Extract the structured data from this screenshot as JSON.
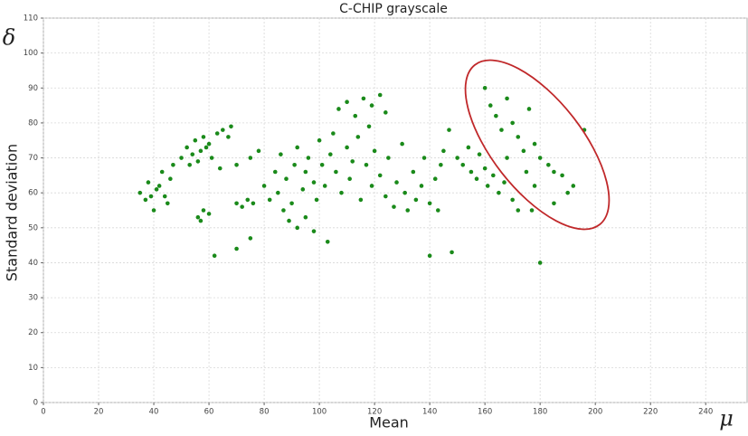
{
  "chart_data": {
    "type": "scatter",
    "title": "C-CHIP grayscale",
    "x_label": "Mean",
    "y_label": "Standard deviation",
    "x_symbol": "μ",
    "y_symbol": "δ",
    "xlim": [
      0,
      255
    ],
    "ylim": [
      0,
      110
    ],
    "xticks": [
      0,
      20,
      40,
      60,
      80,
      100,
      120,
      140,
      160,
      180,
      200,
      220,
      240
    ],
    "yticks": [
      0,
      10,
      20,
      30,
      40,
      50,
      60,
      70,
      80,
      90,
      100,
      110
    ],
    "grid": true,
    "color": "#1a8a1a",
    "x": [
      35,
      37,
      38,
      40,
      41,
      43,
      44,
      46,
      47,
      45,
      42,
      39,
      50,
      52,
      54,
      55,
      57,
      58,
      60,
      61,
      63,
      65,
      67,
      68,
      56,
      59,
      53,
      56,
      58,
      60,
      57,
      70,
      72,
      74,
      76,
      64,
      70,
      75,
      78,
      80,
      82,
      84,
      85,
      86,
      88,
      90,
      91,
      92,
      94,
      95,
      96,
      98,
      99,
      100,
      101,
      102,
      104,
      105,
      106,
      108,
      110,
      111,
      112,
      114,
      115,
      89,
      92,
      95,
      98,
      87,
      117,
      119,
      120,
      122,
      124,
      125,
      127,
      128,
      130,
      131,
      132,
      134,
      135,
      137,
      138,
      140,
      142,
      143,
      145,
      147,
      144,
      107,
      110,
      113,
      116,
      119,
      122,
      124,
      118,
      150,
      152,
      154,
      155,
      157,
      158,
      160,
      161,
      163,
      165,
      167,
      170,
      172,
      162,
      164,
      166,
      168,
      170,
      172,
      174,
      176,
      178,
      180,
      183,
      185,
      188,
      190,
      192,
      160,
      168,
      175,
      178,
      185,
      196,
      177,
      62,
      180,
      140,
      70,
      75,
      103,
      148
    ],
    "y": [
      60,
      58,
      63,
      55,
      61,
      66,
      59,
      64,
      68,
      57,
      62,
      59,
      70,
      73,
      71,
      75,
      72,
      76,
      74,
      70,
      77,
      78,
      76,
      79,
      69,
      73,
      68,
      53,
      55,
      54,
      52,
      57,
      56,
      58,
      57,
      67,
      68,
      70,
      72,
      62,
      58,
      66,
      60,
      71,
      64,
      57,
      68,
      73,
      61,
      66,
      70,
      63,
      58,
      75,
      68,
      62,
      71,
      77,
      66,
      60,
      73,
      64,
      69,
      76,
      58,
      52,
      50,
      53,
      49,
      55,
      68,
      62,
      72,
      65,
      59,
      70,
      56,
      63,
      74,
      60,
      55,
      66,
      58,
      62,
      70,
      57,
      64,
      55,
      72,
      78,
      68,
      84,
      86,
      82,
      87,
      85,
      88,
      83,
      79,
      70,
      68,
      73,
      66,
      64,
      71,
      67,
      62,
      65,
      60,
      63,
      58,
      55,
      85,
      82,
      78,
      87,
      80,
      76,
      72,
      84,
      74,
      70,
      68,
      66,
      65,
      60,
      62,
      90,
      70,
      66,
      62,
      57,
      78,
      55,
      42,
      40,
      42,
      44,
      47,
      46,
      43
    ]
  }
}
